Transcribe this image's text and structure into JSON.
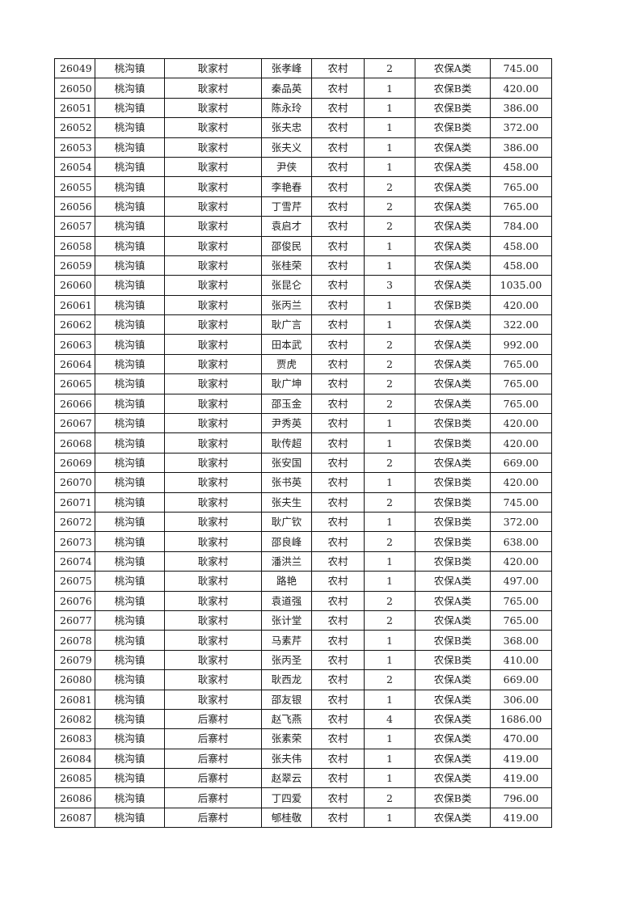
{
  "table": {
    "rows": [
      [
        "26049",
        "桃沟镇",
        "耿家村",
        "张孝峰",
        "农村",
        "2",
        "农保A类",
        "745.00"
      ],
      [
        "26050",
        "桃沟镇",
        "耿家村",
        "秦品英",
        "农村",
        "1",
        "农保B类",
        "420.00"
      ],
      [
        "26051",
        "桃沟镇",
        "耿家村",
        "陈永玲",
        "农村",
        "1",
        "农保B类",
        "386.00"
      ],
      [
        "26052",
        "桃沟镇",
        "耿家村",
        "张夫忠",
        "农村",
        "1",
        "农保B类",
        "372.00"
      ],
      [
        "26053",
        "桃沟镇",
        "耿家村",
        "张夫义",
        "农村",
        "1",
        "农保A类",
        "386.00"
      ],
      [
        "26054",
        "桃沟镇",
        "耿家村",
        "尹侠",
        "农村",
        "1",
        "农保A类",
        "458.00"
      ],
      [
        "26055",
        "桃沟镇",
        "耿家村",
        "李艳春",
        "农村",
        "2",
        "农保A类",
        "765.00"
      ],
      [
        "26056",
        "桃沟镇",
        "耿家村",
        "丁雪芹",
        "农村",
        "2",
        "农保A类",
        "765.00"
      ],
      [
        "26057",
        "桃沟镇",
        "耿家村",
        "袁启才",
        "农村",
        "2",
        "农保A类",
        "784.00"
      ],
      [
        "26058",
        "桃沟镇",
        "耿家村",
        "邵俊民",
        "农村",
        "1",
        "农保A类",
        "458.00"
      ],
      [
        "26059",
        "桃沟镇",
        "耿家村",
        "张桂荣",
        "农村",
        "1",
        "农保A类",
        "458.00"
      ],
      [
        "26060",
        "桃沟镇",
        "耿家村",
        "张昆仑",
        "农村",
        "3",
        "农保A类",
        "1035.00"
      ],
      [
        "26061",
        "桃沟镇",
        "耿家村",
        "张丙兰",
        "农村",
        "1",
        "农保B类",
        "420.00"
      ],
      [
        "26062",
        "桃沟镇",
        "耿家村",
        "耿广言",
        "农村",
        "1",
        "农保A类",
        "322.00"
      ],
      [
        "26063",
        "桃沟镇",
        "耿家村",
        "田本武",
        "农村",
        "2",
        "农保A类",
        "992.00"
      ],
      [
        "26064",
        "桃沟镇",
        "耿家村",
        "贾虎",
        "农村",
        "2",
        "农保A类",
        "765.00"
      ],
      [
        "26065",
        "桃沟镇",
        "耿家村",
        "耿广坤",
        "农村",
        "2",
        "农保A类",
        "765.00"
      ],
      [
        "26066",
        "桃沟镇",
        "耿家村",
        "邵玉金",
        "农村",
        "2",
        "农保A类",
        "765.00"
      ],
      [
        "26067",
        "桃沟镇",
        "耿家村",
        "尹秀英",
        "农村",
        "1",
        "农保B类",
        "420.00"
      ],
      [
        "26068",
        "桃沟镇",
        "耿家村",
        "耿传超",
        "农村",
        "1",
        "农保B类",
        "420.00"
      ],
      [
        "26069",
        "桃沟镇",
        "耿家村",
        "张安国",
        "农村",
        "2",
        "农保A类",
        "669.00"
      ],
      [
        "26070",
        "桃沟镇",
        "耿家村",
        "张书英",
        "农村",
        "1",
        "农保B类",
        "420.00"
      ],
      [
        "26071",
        "桃沟镇",
        "耿家村",
        "张夫生",
        "农村",
        "2",
        "农保B类",
        "745.00"
      ],
      [
        "26072",
        "桃沟镇",
        "耿家村",
        "耿广钦",
        "农村",
        "1",
        "农保B类",
        "372.00"
      ],
      [
        "26073",
        "桃沟镇",
        "耿家村",
        "邵良峰",
        "农村",
        "2",
        "农保B类",
        "638.00"
      ],
      [
        "26074",
        "桃沟镇",
        "耿家村",
        "潘洪兰",
        "农村",
        "1",
        "农保B类",
        "420.00"
      ],
      [
        "26075",
        "桃沟镇",
        "耿家村",
        "路艳",
        "农村",
        "1",
        "农保A类",
        "497.00"
      ],
      [
        "26076",
        "桃沟镇",
        "耿家村",
        "袁道强",
        "农村",
        "2",
        "农保A类",
        "765.00"
      ],
      [
        "26077",
        "桃沟镇",
        "耿家村",
        "张计堂",
        "农村",
        "2",
        "农保A类",
        "765.00"
      ],
      [
        "26078",
        "桃沟镇",
        "耿家村",
        "马素芹",
        "农村",
        "1",
        "农保B类",
        "368.00"
      ],
      [
        "26079",
        "桃沟镇",
        "耿家村",
        "张丙圣",
        "农村",
        "1",
        "农保B类",
        "410.00"
      ],
      [
        "26080",
        "桃沟镇",
        "耿家村",
        "耿西龙",
        "农村",
        "2",
        "农保A类",
        "669.00"
      ],
      [
        "26081",
        "桃沟镇",
        "耿家村",
        "邵友银",
        "农村",
        "1",
        "农保A类",
        "306.00"
      ],
      [
        "26082",
        "桃沟镇",
        "后寨村",
        "赵飞燕",
        "农村",
        "4",
        "农保A类",
        "1686.00"
      ],
      [
        "26083",
        "桃沟镇",
        "后寨村",
        "张素荣",
        "农村",
        "1",
        "农保A类",
        "470.00"
      ],
      [
        "26084",
        "桃沟镇",
        "后寨村",
        "张夫伟",
        "农村",
        "1",
        "农保A类",
        "419.00"
      ],
      [
        "26085",
        "桃沟镇",
        "后寨村",
        "赵翠云",
        "农村",
        "1",
        "农保A类",
        "419.00"
      ],
      [
        "26086",
        "桃沟镇",
        "后寨村",
        "丁四爱",
        "农村",
        "2",
        "农保B类",
        "796.00"
      ],
      [
        "26087",
        "桃沟镇",
        "后寨村",
        "郇桂敬",
        "农村",
        "1",
        "农保A类",
        "419.00"
      ]
    ]
  }
}
